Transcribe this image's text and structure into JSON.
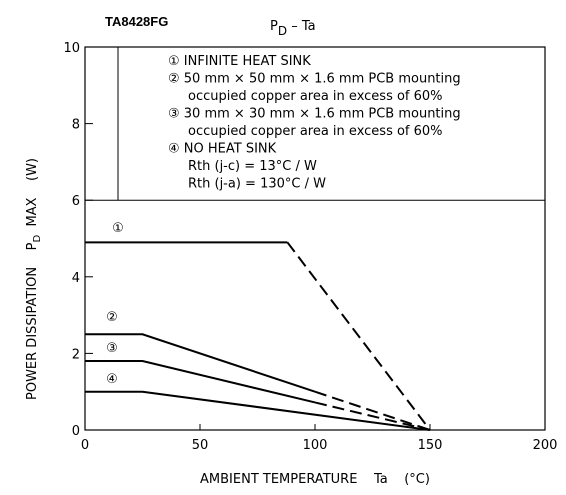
{
  "chart_data": {
    "type": "line",
    "title": "TA8428FG",
    "subtitle": {
      "main": "P",
      "sub": "D",
      "rest": "  –  Ta"
    },
    "ylabel": {
      "main": "POWER DISSIPATION    P",
      "sub": "D",
      "rest": "  MAX    (W)"
    },
    "xlabel": "AMBIENT TEMPERATURE    Ta    (°C)",
    "xlim": [
      0,
      200
    ],
    "xticks": [
      0,
      50,
      100,
      150,
      200
    ],
    "ylim": [
      0,
      10
    ],
    "yticks": [
      0,
      2,
      4,
      6,
      8,
      10
    ],
    "color": "#000000",
    "legend": [
      "① INFINITE HEAT SINK",
      "② 50 mm × 50 mm × 1.6 mm PCB mounting",
      "occupied copper area in excess of 60%",
      "③ 30 mm × 30 mm × 1.6 mm PCB mounting",
      "occupied copper area in excess of 60%",
      "④ NO HEAT SINK",
      "Rth (j-c) = 13°C / W",
      "Rth (j-a) = 130°C / W"
    ],
    "series": [
      {
        "name": "①",
        "segments": [
          {
            "style": "solid",
            "x": [
              0,
              88
            ],
            "values": [
              4.9,
              4.9
            ]
          },
          {
            "style": "dashed",
            "x": [
              88,
              150
            ],
            "values": [
              4.9,
              0
            ]
          }
        ]
      },
      {
        "name": "②",
        "segments": [
          {
            "style": "solid",
            "x": [
              0,
              25,
              100
            ],
            "values": [
              2.5,
              2.5,
              1.0
            ]
          },
          {
            "style": "dashed",
            "x": [
              100,
              150
            ],
            "values": [
              1.0,
              0
            ]
          }
        ]
      },
      {
        "name": "③",
        "segments": [
          {
            "style": "solid",
            "x": [
              0,
              25,
              100
            ],
            "values": [
              1.8,
              1.8,
              0.72
            ]
          },
          {
            "style": "dashed",
            "x": [
              100,
              150
            ],
            "values": [
              0.72,
              0
            ]
          }
        ]
      },
      {
        "name": "④",
        "segments": [
          {
            "style": "solid",
            "x": [
              0,
              25,
              150
            ],
            "values": [
              1.0,
              1.0,
              0
            ]
          }
        ]
      }
    ]
  }
}
